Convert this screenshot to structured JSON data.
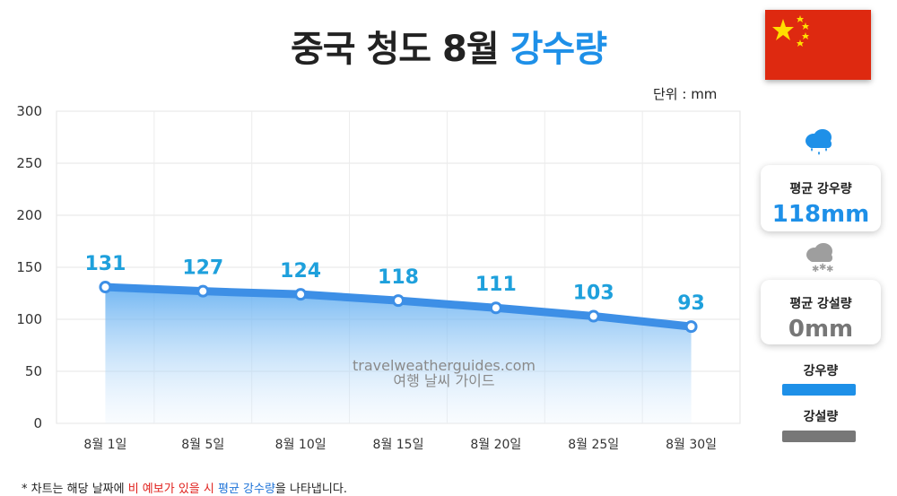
{
  "title": {
    "main": "중국 청도 8월",
    "accent": "강수량"
  },
  "unit_label": "단위 : mm",
  "colors": {
    "accent": "#1e90e8",
    "rain_bar": "#1e90e8",
    "snow_bar": "#777777",
    "flag_red": "#de2910",
    "flag_star": "#ffde00"
  },
  "side": {
    "rain_card": {
      "label": "평균 강우량",
      "value": "118mm",
      "icon": "rain-cloud-icon"
    },
    "snow_card": {
      "label": "평균 강설량",
      "value": "0mm",
      "icon": "snow-cloud-icon"
    },
    "legend": [
      {
        "label": "강우량",
        "color": "#1e90e8"
      },
      {
        "label": "강설량",
        "color": "#777777"
      }
    ]
  },
  "footnote": {
    "prefix": "* 차트는 해당 날짜에 ",
    "red": "비 예보가 있을 시",
    "middle": " ",
    "blue": "평균 강수량",
    "suffix": "을 나타냅니다."
  },
  "chart_data": {
    "type": "area",
    "categories": [
      "8월 1일",
      "8월 5일",
      "8월 10일",
      "8월 15일",
      "8월 20일",
      "8월 25일",
      "8월 30일"
    ],
    "series": [
      {
        "name": "강우량",
        "values": [
          131,
          127,
          124,
          118,
          111,
          103,
          93
        ]
      }
    ],
    "ylim": [
      0,
      300
    ],
    "yticks": [
      0,
      50,
      100,
      150,
      200,
      250,
      300
    ],
    "ylabel": "",
    "xlabel": "",
    "grid": true,
    "watermark": [
      "travelweatherguides.com",
      "여행 날씨 가이드"
    ]
  }
}
